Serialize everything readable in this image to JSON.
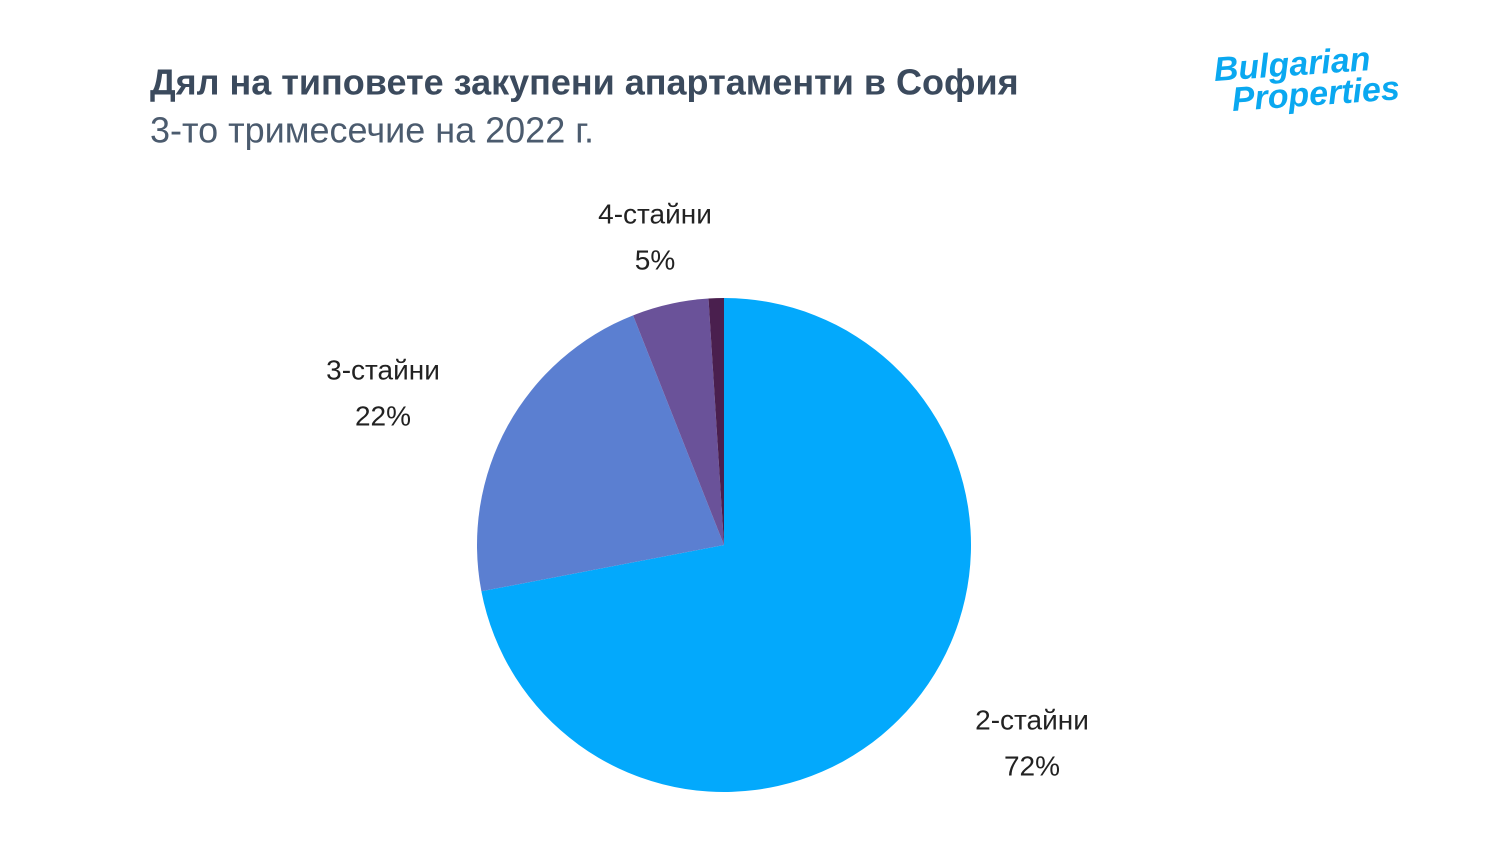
{
  "chart_data": {
    "type": "pie",
    "title": "Дял на типовете закупени апартаменти в София",
    "subtitle": "3-то тримесечие на 2022 г.",
    "logo": [
      "Bulgarian",
      "Properties"
    ],
    "categories": [
      "2-стайни",
      "3-стайни",
      "4-стайни",
      null
    ],
    "values": [
      72,
      22,
      5,
      1
    ],
    "value_labels": [
      "72%",
      "22%",
      "5%",
      null
    ],
    "colors": [
      "#03a9fc",
      "#5b7fd1",
      "#6a5299",
      "#4a1f4e"
    ]
  }
}
